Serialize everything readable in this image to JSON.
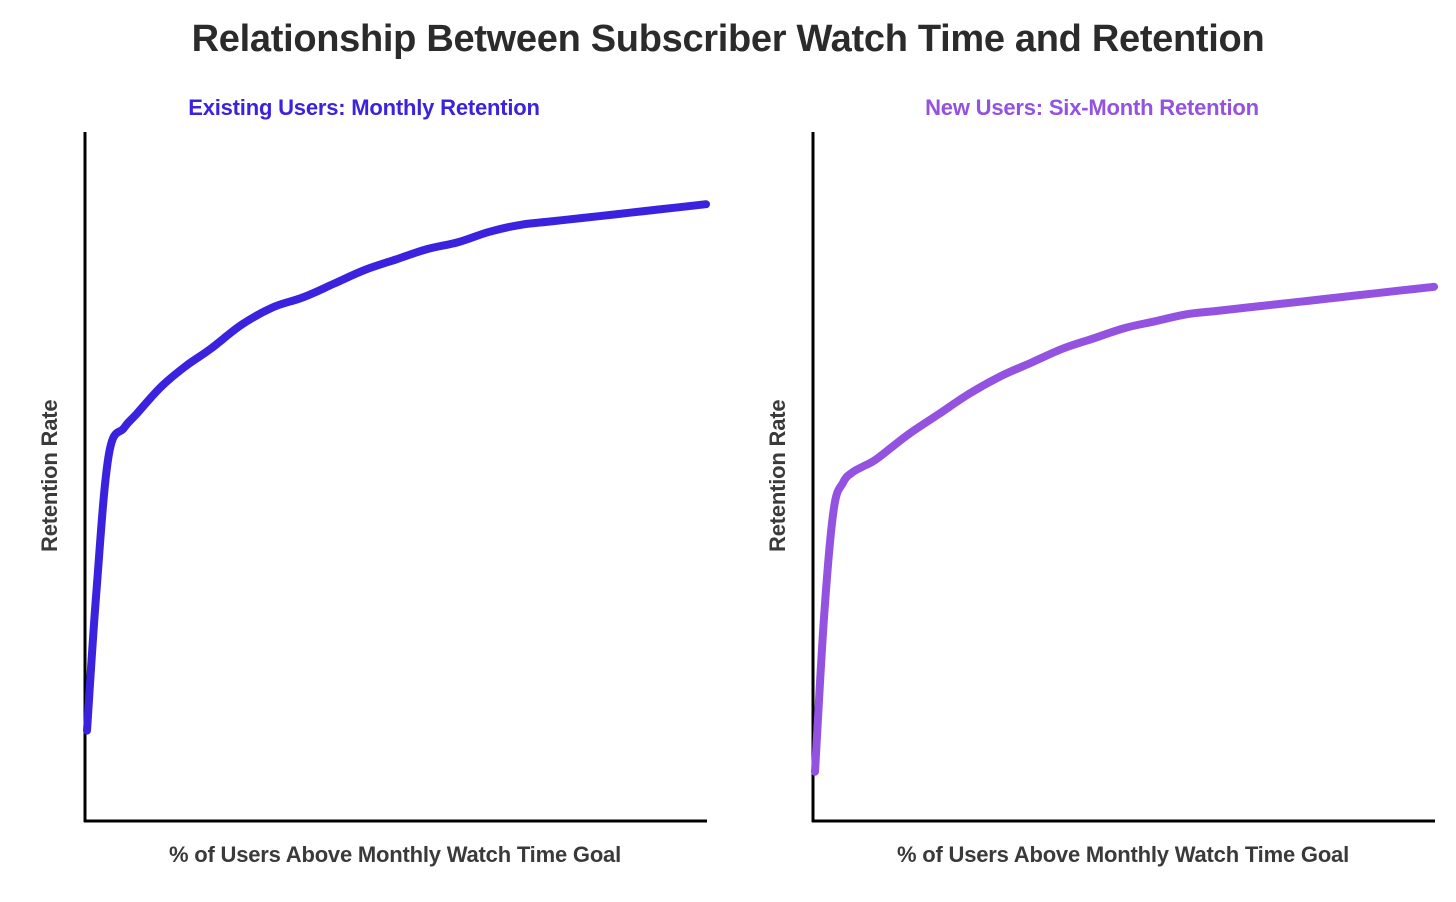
{
  "title": "Relationship Between Subscriber Watch Time and Retention",
  "colors": {
    "left_series": "#3b22de",
    "right_series": "#9352e0",
    "axis": "#000000",
    "text": "#3a3a3a"
  },
  "chart_data": [
    {
      "type": "line",
      "title": "Existing Users: Monthly Retention",
      "xlabel": "% of Users Above Monthly Watch Time Goal",
      "ylabel": "Retention Rate",
      "xlim": [
        0,
        100
      ],
      "ylim": [
        0,
        100
      ],
      "grid": false,
      "series": [
        {
          "x": [
            0,
            1.5,
            3.5,
            6,
            8,
            12,
            16,
            20,
            25,
            30,
            35,
            40,
            45,
            50,
            55,
            60,
            65,
            70,
            75,
            80,
            85,
            90,
            95,
            100
          ],
          "y": [
            13,
            33,
            53,
            57,
            59,
            63,
            66,
            68.5,
            72,
            74.5,
            76,
            78,
            80,
            81.5,
            83,
            84,
            85.5,
            86.5,
            87,
            87.5,
            88,
            88.5,
            89,
            89.5
          ]
        }
      ]
    },
    {
      "type": "line",
      "title": "New Users: Six-Month Retention",
      "xlabel": "% of Users Above Monthly Watch Time Goal",
      "ylabel": "Retention Rate",
      "xlim": [
        0,
        100
      ],
      "ylim": [
        0,
        100
      ],
      "grid": false,
      "series": [
        {
          "x": [
            0,
            1.5,
            3,
            4.5,
            6,
            8,
            10,
            15,
            20,
            25,
            30,
            35,
            40,
            45,
            50,
            55,
            60,
            65,
            70,
            75,
            80,
            85,
            90,
            95,
            100
          ],
          "y": [
            7,
            30,
            45,
            49,
            50.5,
            51.5,
            52.5,
            56,
            59,
            62,
            64.5,
            66.5,
            68.5,
            70,
            71.5,
            72.5,
            73.5,
            74,
            74.5,
            75,
            75.5,
            76,
            76.5,
            77,
            77.5
          ]
        }
      ]
    }
  ]
}
